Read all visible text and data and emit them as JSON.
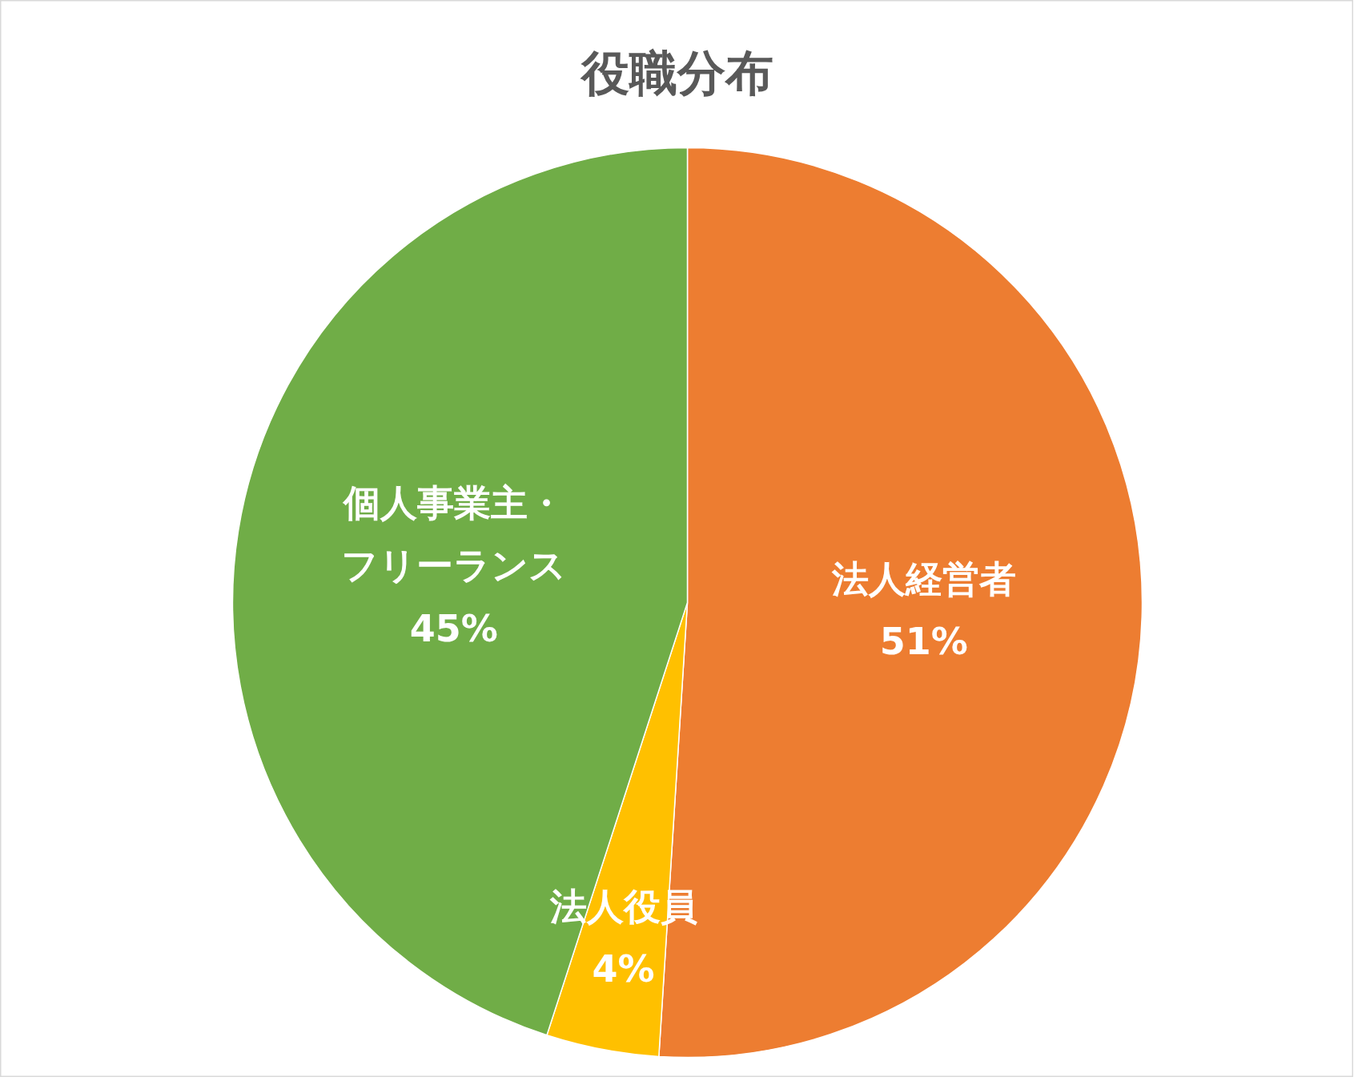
{
  "chart_data": {
    "type": "pie",
    "title": "役職分布",
    "categories": [
      "法人経営者",
      "法人役員",
      "個人事業主・フリーランス"
    ],
    "values": [
      51,
      4,
      45
    ],
    "value_labels": [
      "51%",
      "4%",
      "45%"
    ],
    "colors": [
      "#ed7d31",
      "#ffc000",
      "#70ad47"
    ],
    "legend": false
  }
}
